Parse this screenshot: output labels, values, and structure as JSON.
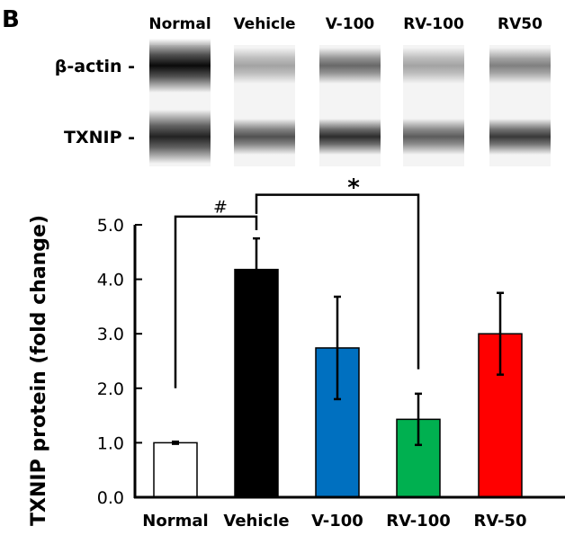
{
  "panel_label": "B",
  "blot": {
    "lanes": [
      "Normal",
      "Vehicle",
      "V-100",
      "RV-100",
      "RV50"
    ],
    "rows": [
      {
        "label": "β-actin -",
        "darkness": [
          1.0,
          0.35,
          0.6,
          0.35,
          0.5
        ]
      },
      {
        "label": "TXNIP -",
        "darkness": [
          0.9,
          0.7,
          0.85,
          0.65,
          0.8
        ]
      }
    ]
  },
  "chart_data": {
    "type": "bar",
    "title": "",
    "xlabel": "",
    "ylabel": "TXNIP protein (fold change)",
    "ylim": [
      0,
      5
    ],
    "yticks": [
      "0.0",
      "1.0",
      "2.0",
      "3.0",
      "4.0",
      "5.0"
    ],
    "categories": [
      "Normal",
      "Vehicle",
      "V-100",
      "RV-100",
      "RV-50"
    ],
    "values": [
      1.0,
      4.18,
      2.74,
      1.43,
      3.0
    ],
    "errors": [
      0.02,
      0.57,
      0.94,
      0.47,
      0.75
    ],
    "colors": [
      "#ffffff",
      "#000000",
      "#0070c0",
      "#00b050",
      "#ff0000"
    ],
    "significance": [
      {
        "symbol": "#",
        "from": "Normal",
        "to": "Vehicle"
      },
      {
        "symbol": "*",
        "from": "Vehicle",
        "to": "RV-100"
      }
    ]
  }
}
